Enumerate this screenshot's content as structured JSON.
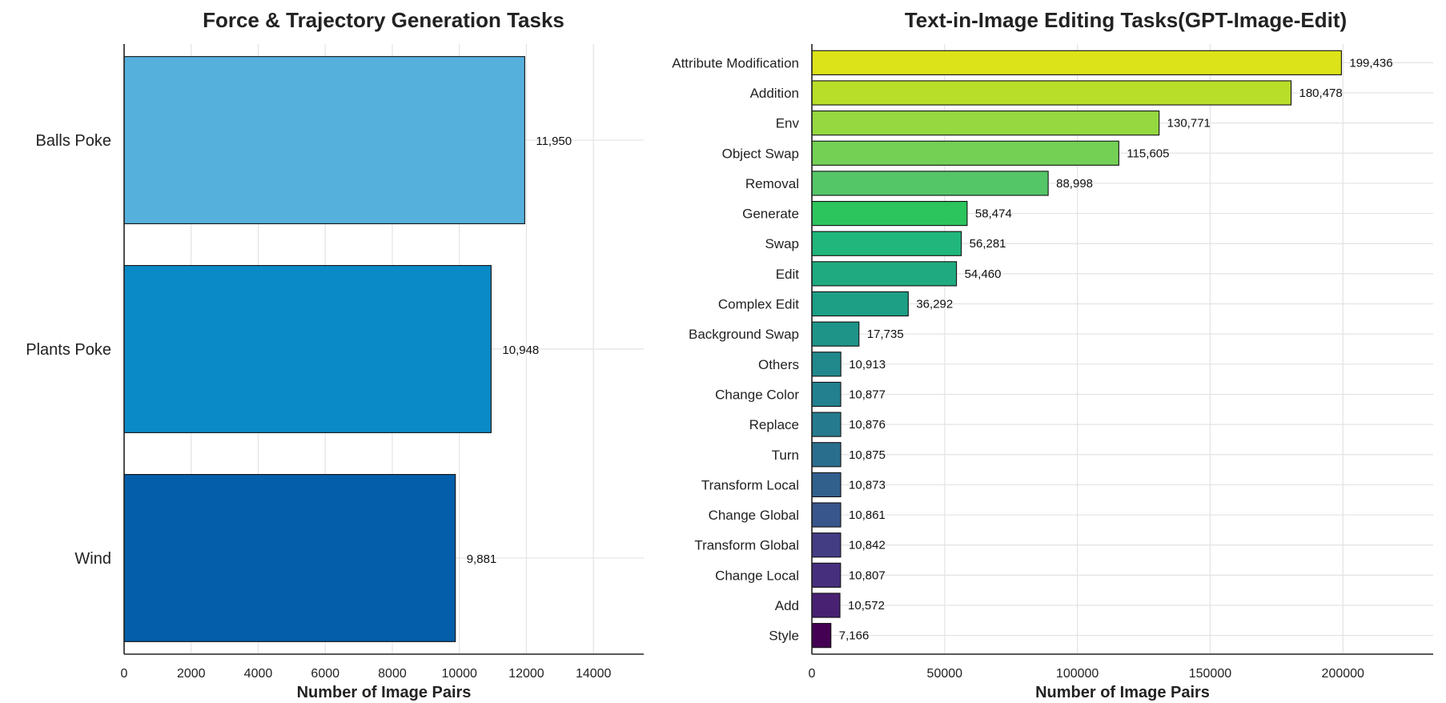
{
  "chart_data": [
    {
      "type": "bar",
      "orientation": "horizontal",
      "title": "Force & Trajectory Generation Tasks",
      "xlabel": "Number of Image Pairs",
      "ylabel": "",
      "xlim": [
        0,
        15500
      ],
      "xticks": [
        0,
        2000,
        4000,
        6000,
        8000,
        10000,
        12000,
        14000
      ],
      "xtick_labels": [
        "0",
        "2000",
        "4000",
        "6000",
        "8000",
        "10000",
        "12000",
        "14000"
      ],
      "grid": true,
      "categories": [
        "Balls Poke",
        "Plants Poke",
        "Wind"
      ],
      "values": [
        11950,
        10948,
        9881
      ],
      "value_labels": [
        "11,950",
        "10,948",
        "9,881"
      ],
      "colors": [
        "#56b0dc",
        "#0a8ac6",
        "#055ea9"
      ]
    },
    {
      "type": "bar",
      "orientation": "horizontal",
      "title": "Text-in-Image Editing Tasks(GPT-Image-Edit)",
      "xlabel": "Number of Image Pairs",
      "ylabel": "",
      "xlim": [
        0,
        234000
      ],
      "xticks": [
        0,
        50000,
        100000,
        150000,
        200000
      ],
      "xtick_labels": [
        "0",
        "50000",
        "100000",
        "150000",
        "200000"
      ],
      "grid": true,
      "categories": [
        "Attribute Modification",
        "Addition",
        "Env",
        "Object Swap",
        "Removal",
        "Generate",
        "Swap",
        "Edit",
        "Complex Edit",
        "Background Swap",
        "Others",
        "Change Color",
        "Replace",
        "Turn",
        "Transform Local",
        "Change Global",
        "Transform Global",
        "Change Local",
        "Add",
        "Style"
      ],
      "values": [
        199436,
        180478,
        130771,
        115605,
        88998,
        58474,
        56281,
        54460,
        36292,
        17735,
        10913,
        10877,
        10876,
        10875,
        10873,
        10861,
        10842,
        10807,
        10572,
        7166
      ],
      "value_labels": [
        "199,436",
        "180,478",
        "130,771",
        "115,605",
        "88,998",
        "58,474",
        "56,281",
        "54,460",
        "36,292",
        "17,735",
        "10,913",
        "10,877",
        "10,876",
        "10,875",
        "10,873",
        "10,861",
        "10,842",
        "10,807",
        "10,572",
        "7,166"
      ],
      "colors": [
        "#dce319",
        "#b8de29",
        "#95d840",
        "#73d055",
        "#55c667",
        "#2cc45c",
        "#20b67c",
        "#1fab7f",
        "#1c9f85",
        "#1e9488",
        "#21888c",
        "#23808e",
        "#267a8e",
        "#2a6e8e",
        "#31608d",
        "#39568c",
        "#433d84",
        "#46307e",
        "#482173",
        "#440154"
      ]
    }
  ]
}
